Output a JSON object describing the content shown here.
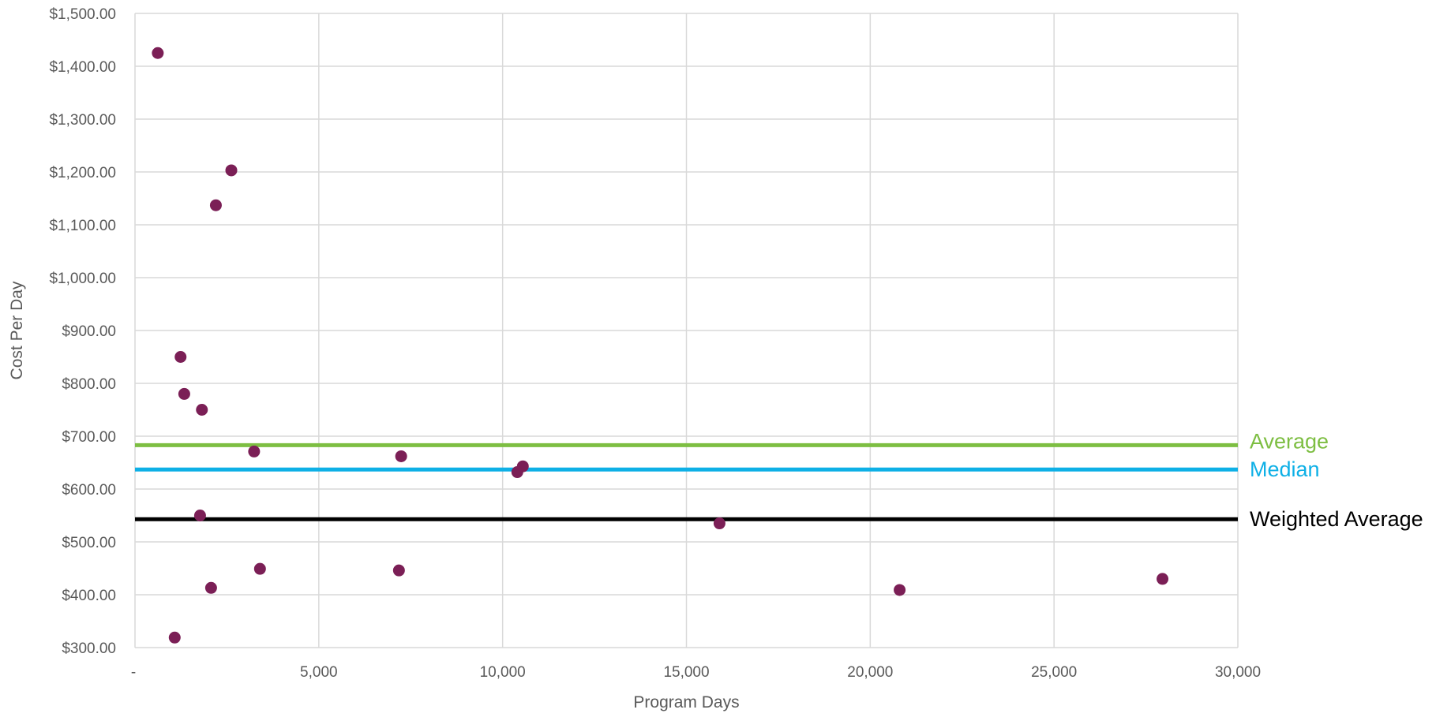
{
  "chart_data": {
    "type": "scatter",
    "title": "",
    "xlabel": "Program Days",
    "ylabel": "Cost Per Day",
    "xlim": [
      0,
      30000
    ],
    "ylim": [
      300,
      1500
    ],
    "x_ticks": [
      0,
      5000,
      10000,
      15000,
      20000,
      25000,
      30000
    ],
    "x_tick_labels": [
      "-",
      "5,000",
      "10,000",
      "15,000",
      "20,000",
      "25,000",
      "30,000"
    ],
    "y_ticks": [
      300,
      400,
      500,
      600,
      700,
      800,
      900,
      1000,
      1100,
      1200,
      1300,
      1400,
      1500
    ],
    "y_tick_labels": [
      "$300.00",
      "$400.00",
      "$500.00",
      "$600.00",
      "$700.00",
      "$800.00",
      "$900.00",
      "$1,000.00",
      "$1,100.00",
      "$1,200.00",
      "$1,300.00",
      "$1,400.00",
      "$1,500.00"
    ],
    "grid": true,
    "legend": "none",
    "series": [
      {
        "color": "#7B1F56",
        "points": [
          {
            "x": 620,
            "y": 1425
          },
          {
            "x": 2620,
            "y": 1203
          },
          {
            "x": 2200,
            "y": 1137
          },
          {
            "x": 1240,
            "y": 850
          },
          {
            "x": 1340,
            "y": 780
          },
          {
            "x": 1820,
            "y": 750
          },
          {
            "x": 3240,
            "y": 671
          },
          {
            "x": 7240,
            "y": 662
          },
          {
            "x": 10550,
            "y": 643
          },
          {
            "x": 10400,
            "y": 632
          },
          {
            "x": 1770,
            "y": 550
          },
          {
            "x": 15900,
            "y": 535
          },
          {
            "x": 3400,
            "y": 449
          },
          {
            "x": 7180,
            "y": 446
          },
          {
            "x": 2070,
            "y": 413
          },
          {
            "x": 20800,
            "y": 409
          },
          {
            "x": 27950,
            "y": 430
          },
          {
            "x": 1080,
            "y": 319
          }
        ]
      }
    ],
    "reference_lines": [
      {
        "label": "Average",
        "value": 683,
        "color": "#7DBE42"
      },
      {
        "label": "Median",
        "value": 637,
        "color": "#0EB0E6"
      },
      {
        "label": "Weighted Average",
        "value": 543,
        "color": "#000000"
      }
    ]
  },
  "colors": {
    "grid": "#D9D9D9",
    "tick_text": "#595959",
    "axis_title": "#595959"
  }
}
